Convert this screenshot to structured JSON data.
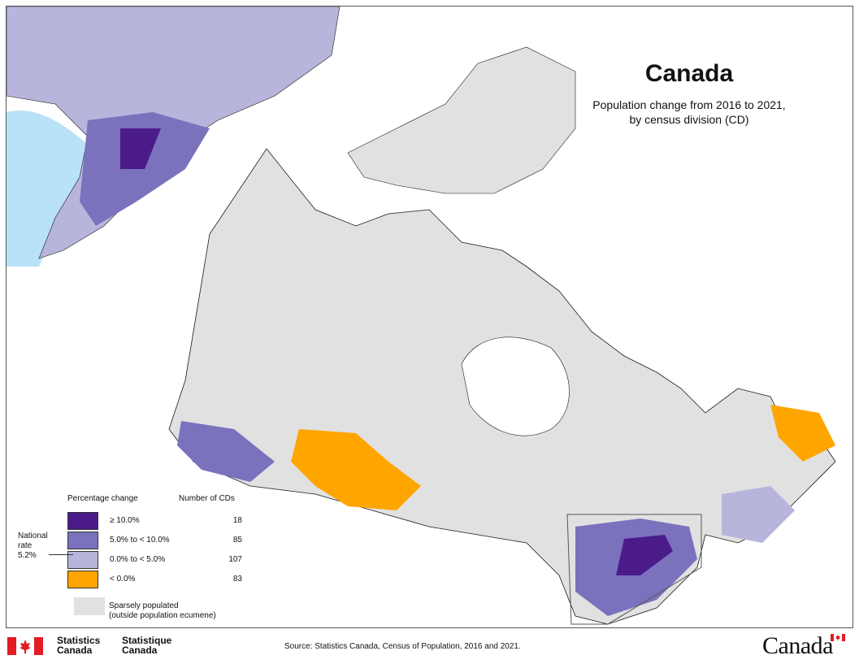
{
  "title": "Canada",
  "subtitle": [
    "Population change from 2016 to 2021,",
    "by census division (CD)"
  ],
  "colors": {
    "class_1": "#4b1b8a",
    "class_2": "#7a72bd",
    "class_3": "#b8b5dc",
    "class_4": "#ffa500",
    "sparse": "#e1e1e1",
    "water": "#b9e1f7",
    "border": "#1a1a1a"
  },
  "legend": {
    "header_change": "Percentage change",
    "header_count": "Number of CDs",
    "classes": [
      {
        "label": "≥ 10.0%",
        "count": "18",
        "color": "#4b1b8a"
      },
      {
        "label": "5.0% to < 10.0%",
        "count": "85",
        "color": "#7a72bd"
      },
      {
        "label": "0.0% to < 5.0%",
        "count": "107",
        "color": "#b8b5dc"
      },
      {
        "label": "< 0.0%",
        "count": "83",
        "color": "#ffa500"
      }
    ],
    "sparse_label": [
      "Sparsely populated",
      "(outside population ecumene)"
    ],
    "national_rate": [
      "National",
      "rate",
      "5.2%"
    ]
  },
  "footer": {
    "agency_en": [
      "Statistics",
      "Canada"
    ],
    "agency_fr": [
      "Statistique",
      "Canada"
    ],
    "source": "Source: Statistics Canada, Census of Population, 2016 and 2021.",
    "wordmark": "Canada"
  }
}
